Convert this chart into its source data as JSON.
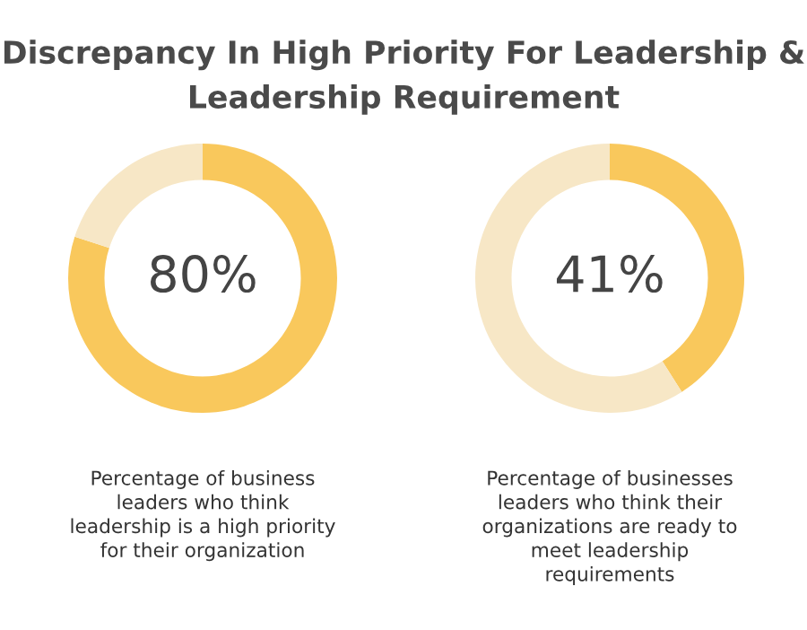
{
  "chart_data": [
    {
      "type": "donut",
      "title": "Discrepancy In High Priority For Leadership &\nLeadership Requirement",
      "categories": [
        null,
        null
      ],
      "values": [
        80,
        20
      ],
      "colors": [
        "#f9c85c",
        "#f7e7c6"
      ],
      "value_labels": [
        "80%",
        null
      ],
      "annotations": [
        "Percentage of business\nleaders who think\nleadership is a high priority\nfor their organization"
      ]
    },
    {
      "type": "donut",
      "categories": [
        null,
        null
      ],
      "values": [
        41,
        59
      ],
      "colors": [
        "#f9c85c",
        "#f7e7c6"
      ],
      "value_labels": [
        "41%",
        null
      ],
      "annotations": [
        "Percentage of businesses\nleaders who think their\norganizations are ready to\nmeet leadership\nrequirements"
      ]
    }
  ]
}
